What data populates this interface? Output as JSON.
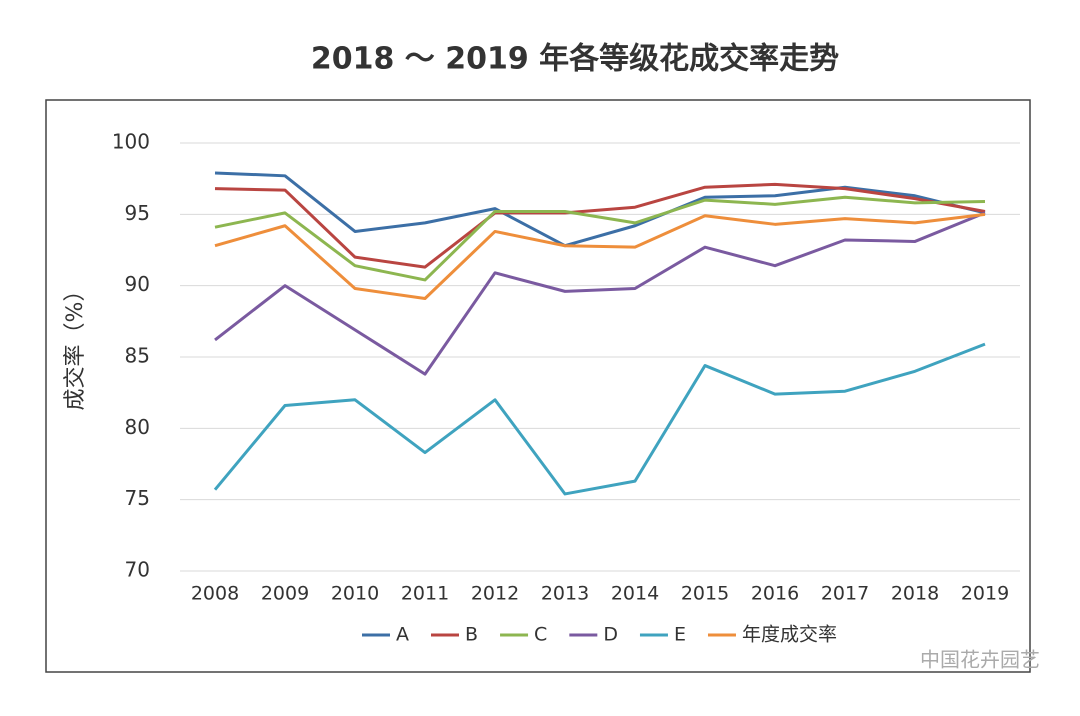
{
  "chart_data": {
    "type": "line",
    "title": "2018 ～ 2019 年各等级花成交率走势",
    "y_label": "成交率（%）",
    "categories": [
      "2008",
      "2009",
      "2010",
      "2011",
      "2012",
      "2013",
      "2014",
      "2015",
      "2016",
      "2017",
      "2018",
      "2019"
    ],
    "series": [
      {
        "name": "A",
        "color": "#3c6fa6",
        "values": [
          97.9,
          97.7,
          93.8,
          94.4,
          95.4,
          92.8,
          94.2,
          96.2,
          96.3,
          96.9,
          96.3,
          95.1
        ]
      },
      {
        "name": "B",
        "color": "#b94541",
        "values": [
          96.8,
          96.7,
          92.0,
          91.3,
          95.1,
          95.1,
          95.5,
          96.9,
          97.1,
          96.8,
          96.1,
          95.2
        ]
      },
      {
        "name": "C",
        "color": "#8db650",
        "values": [
          94.1,
          95.1,
          91.4,
          90.4,
          95.2,
          95.2,
          94.4,
          96.0,
          95.7,
          96.2,
          95.8,
          95.9
        ]
      },
      {
        "name": "D",
        "color": "#7a5aa0",
        "values": [
          86.2,
          90.0,
          86.9,
          83.8,
          90.9,
          89.6,
          89.8,
          92.7,
          91.4,
          93.2,
          93.1,
          95.1
        ]
      },
      {
        "name": "E",
        "color": "#3fa3bf",
        "values": [
          75.7,
          81.6,
          82.0,
          78.3,
          82.0,
          75.4,
          76.3,
          84.4,
          82.4,
          82.6,
          84.0,
          85.9
        ]
      },
      {
        "name": "年度成交率",
        "color": "#ee8e3b",
        "values": [
          92.8,
          94.2,
          89.8,
          89.1,
          93.8,
          92.8,
          92.7,
          94.9,
          94.3,
          94.7,
          94.4,
          95.0
        ]
      }
    ],
    "ylim": [
      70,
      100
    ],
    "yticks": [
      70,
      75,
      80,
      85,
      90,
      95,
      100
    ],
    "grid": true,
    "legend": "bottom",
    "watermark": "中国花卉园艺"
  }
}
